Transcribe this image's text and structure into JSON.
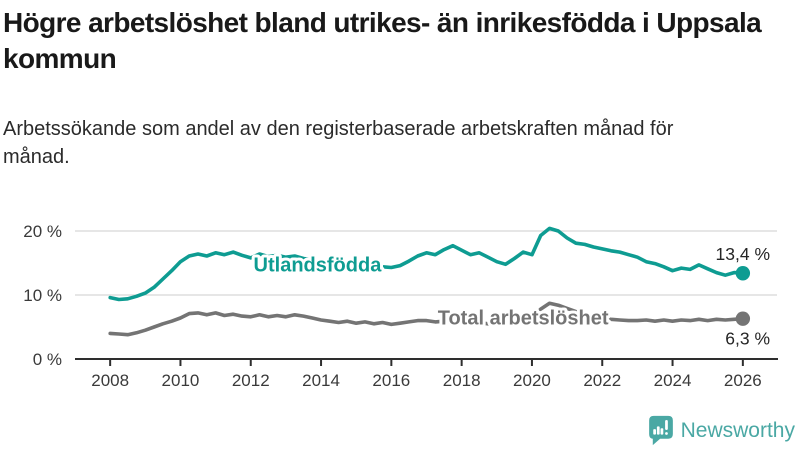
{
  "page": {
    "title": "Högre arbetslöshet bland utrikes- än inrikesfödda i Uppsala kommun",
    "subtitle": "Arbetssökande som andel av den registerbaserade arbetskraften månad för månad.",
    "brand": {
      "name": "Newsworthy",
      "icon": "newsworthy-speech-bubble-bar-chart-icon",
      "color": "#4AA8A4"
    }
  },
  "chart_data": {
    "type": "line",
    "title": "Högre arbetslöshet bland utrikes- än inrikesfödda i Uppsala kommun",
    "subtitle": "Arbetssökande som andel av den registerbaserade arbetskraften månad för månad.",
    "xlabel": "",
    "ylabel": "",
    "xlim": [
      2007,
      2027
    ],
    "ylim": [
      0,
      24
    ],
    "grid": "horizontal",
    "legend_position": "inline-labels",
    "x_ticks": [
      2008,
      2010,
      2012,
      2014,
      2016,
      2018,
      2020,
      2022,
      2024,
      2026
    ],
    "y_ticks": [
      {
        "value": 0,
        "label": "0 %"
      },
      {
        "value": 10,
        "label": "10 %"
      },
      {
        "value": 20,
        "label": "20 %"
      }
    ],
    "x": [
      2008,
      2008.25,
      2008.5,
      2008.75,
      2009,
      2009.25,
      2009.5,
      2009.75,
      2010,
      2010.25,
      2010.5,
      2010.75,
      2011,
      2011.25,
      2011.5,
      2011.75,
      2012,
      2012.25,
      2012.5,
      2012.75,
      2013,
      2013.25,
      2013.5,
      2013.75,
      2014,
      2014.25,
      2014.5,
      2014.75,
      2015,
      2015.25,
      2015.5,
      2015.75,
      2016,
      2016.25,
      2016.5,
      2016.75,
      2017,
      2017.25,
      2017.5,
      2017.75,
      2018,
      2018.25,
      2018.5,
      2018.75,
      2019,
      2019.25,
      2019.5,
      2019.75,
      2020,
      2020.25,
      2020.5,
      2020.75,
      2021,
      2021.25,
      2021.5,
      2021.75,
      2022,
      2022.25,
      2022.5,
      2022.75,
      2023,
      2023.25,
      2023.5,
      2023.75,
      2024,
      2024.25,
      2024.5,
      2024.75,
      2025,
      2025.25,
      2025.5,
      2025.75,
      2026
    ],
    "series": [
      {
        "name": "Utlandsfödda",
        "color": "#0E9C92",
        "end_label": "13,4 %",
        "end_value": 13.4,
        "value_label_position": "above",
        "label_anchor": {
          "x": 2012.08,
          "y": 14.8
        },
        "values": [
          9.6,
          9.3,
          9.4,
          9.8,
          10.3,
          11.2,
          12.5,
          13.8,
          15.2,
          16.1,
          16.4,
          16.1,
          16.6,
          16.3,
          16.7,
          16.2,
          15.8,
          16.4,
          16.0,
          16.2,
          15.9,
          16.1,
          15.7,
          15.5,
          15.3,
          15.5,
          15.1,
          14.9,
          14.7,
          14.9,
          14.5,
          14.4,
          14.3,
          14.6,
          15.3,
          16.1,
          16.6,
          16.3,
          17.1,
          17.7,
          17.0,
          16.3,
          16.6,
          15.9,
          15.2,
          14.8,
          15.7,
          16.7,
          16.3,
          19.3,
          20.4,
          20.0,
          18.9,
          18.1,
          17.9,
          17.5,
          17.2,
          16.9,
          16.7,
          16.3,
          15.9,
          15.2,
          14.9,
          14.4,
          13.8,
          14.2,
          14.0,
          14.7,
          14.1,
          13.5,
          13.1,
          13.5,
          13.4
        ]
      },
      {
        "name": "Total arbetslöshet",
        "color": "#747474",
        "end_label": "6,3 %",
        "end_value": 6.3,
        "value_label_position": "below",
        "label_anchor": {
          "x": 2017.32,
          "y": 6.5
        },
        "values": [
          4.0,
          3.9,
          3.8,
          4.1,
          4.5,
          5.0,
          5.5,
          5.9,
          6.4,
          7.1,
          7.2,
          6.9,
          7.2,
          6.8,
          7.0,
          6.7,
          6.6,
          6.9,
          6.6,
          6.8,
          6.6,
          6.9,
          6.7,
          6.4,
          6.1,
          5.9,
          5.7,
          5.9,
          5.6,
          5.8,
          5.5,
          5.7,
          5.4,
          5.6,
          5.8,
          6.0,
          6.0,
          5.8,
          5.9,
          6.0,
          5.8,
          5.6,
          5.7,
          5.5,
          5.6,
          5.8,
          5.9,
          6.1,
          6.3,
          7.8,
          8.7,
          8.4,
          7.9,
          7.4,
          7.0,
          6.7,
          6.4,
          6.2,
          6.1,
          6.0,
          6.0,
          6.1,
          5.9,
          6.1,
          5.9,
          6.1,
          6.0,
          6.2,
          6.0,
          6.2,
          6.1,
          6.2,
          6.3
        ]
      }
    ]
  }
}
